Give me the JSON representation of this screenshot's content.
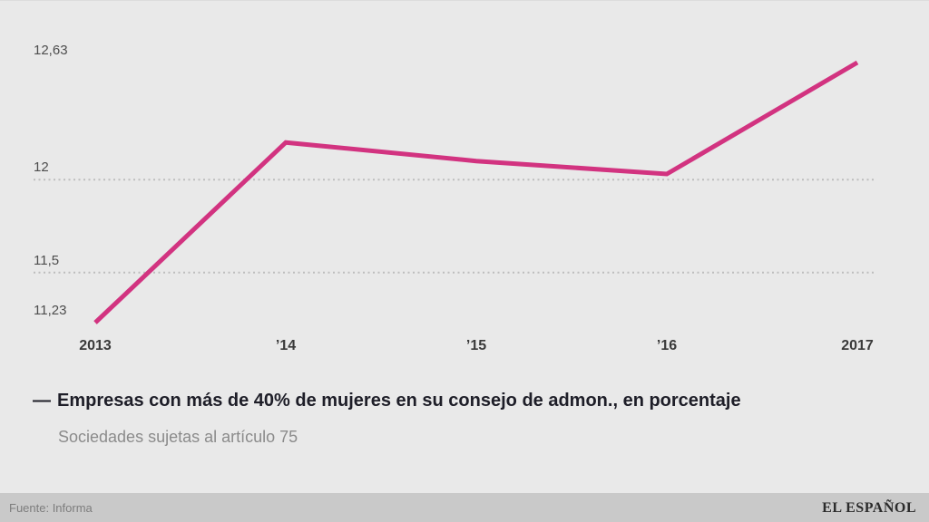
{
  "chart_data": {
    "type": "line",
    "title": "",
    "categories": [
      "2013",
      "’14",
      "’15",
      "’16",
      "2017"
    ],
    "values": [
      11.23,
      12.2,
      12.1,
      12.03,
      12.63
    ],
    "series": [
      {
        "name": "Empresas con más de 40% de mujeres en su consejo de admon., en porcentaje",
        "values": [
          11.23,
          12.2,
          12.1,
          12.03,
          12.63
        ]
      }
    ],
    "xlabel": "",
    "ylabel": "",
    "ylim": [
      11.23,
      12.63
    ],
    "y_ticks": [
      {
        "label": "12,63",
        "value": 12.63
      },
      {
        "label": "12",
        "value": 12
      },
      {
        "label": "11,5",
        "value": 11.5
      },
      {
        "label": "11,23",
        "value": 11.23
      }
    ],
    "gridline_values": [
      12,
      11.5
    ],
    "grid": "horizontal-dotted",
    "legend_position": "bottom-left",
    "line_color": "#d23380"
  },
  "legend": {
    "marker": "—",
    "label": "Empresas con más de 40% de mujeres en su consejo de admon., en porcentaje",
    "subtitle": "Sociedades sujetas al artículo 75"
  },
  "footer": {
    "source": "Fuente: Informa",
    "brand": "EL ESPAÑOL"
  },
  "colors": {
    "background": "#e9e9e9",
    "footer_background": "#c9c9c9",
    "line": "#d23380",
    "gridline": "#bdbdbd",
    "x_tick_text": "#3a3a3a",
    "y_tick_text": "#4d4d4d",
    "legend_text": "#1e1e28",
    "subtitle_text": "#8b8b8b",
    "source_text": "#7d7d7d",
    "brand_text": "#2b2b2b"
  }
}
